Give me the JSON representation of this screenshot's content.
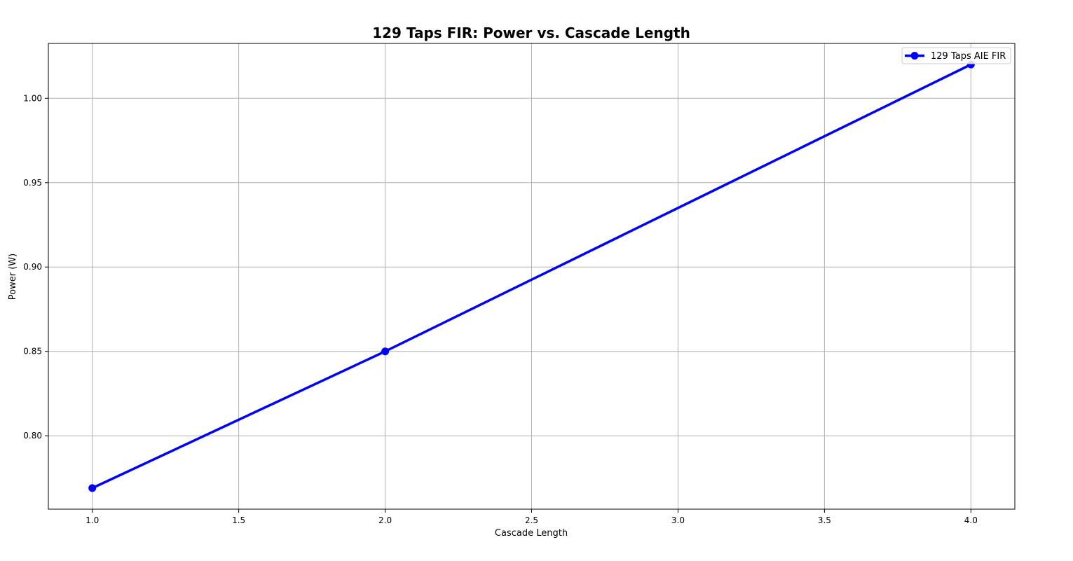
{
  "chart_data": {
    "type": "line",
    "title": "129 Taps FIR: Power vs. Cascade Length",
    "xlabel": "Cascade Length",
    "ylabel": "Power (W)",
    "xlim": [
      0.85,
      4.15
    ],
    "ylim": [
      0.7565,
      1.0325
    ],
    "x_ticks": [
      "1.0",
      "1.5",
      "2.0",
      "2.5",
      "3.0",
      "3.5",
      "4.0"
    ],
    "y_ticks": [
      "0.80",
      "0.85",
      "0.90",
      "0.95",
      "1.00"
    ],
    "grid": true,
    "legend_position": "top-right",
    "series": [
      {
        "name": "129 Taps AIE FIR",
        "color": "#0000ff",
        "marker": "circle",
        "x": [
          1,
          2,
          4
        ],
        "y": [
          0.769,
          0.85,
          1.02
        ]
      }
    ]
  }
}
